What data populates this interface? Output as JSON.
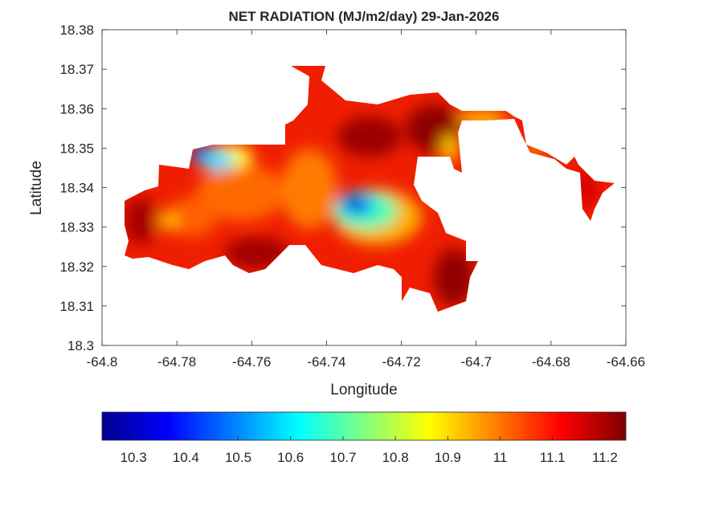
{
  "title": "NET RADIATION (MJ/m2/day) 29-Jan-2026",
  "xlabel": "Longitude",
  "ylabel": "Latitude",
  "xlim": [
    -64.8,
    -64.66
  ],
  "ylim": [
    18.3,
    18.38
  ],
  "xticks": [
    "-64.8",
    "-64.78",
    "-64.76",
    "-64.74",
    "-64.72",
    "-64.7",
    "-64.68",
    "-64.66"
  ],
  "yticks": [
    "18.3",
    "18.31",
    "18.32",
    "18.33",
    "18.34",
    "18.35",
    "18.36",
    "18.37",
    "18.38"
  ],
  "colorbar": {
    "colormap": "jet",
    "range": [
      10.24,
      11.24
    ],
    "orientation": "horizontal",
    "ticks": [
      "10.3",
      "10.4",
      "10.5",
      "10.6",
      "10.7",
      "10.8",
      "10.9",
      "11",
      "11.1",
      "11.2"
    ],
    "colors": [
      "#00008f",
      "#0000ff",
      "#00ffff",
      "#ffff00",
      "#ff0000",
      "#800000"
    ]
  },
  "chart_data": {
    "type": "heatmap",
    "title": "NET RADIATION (MJ/m2/day) 29-Jan-2026",
    "xlabel": "Longitude",
    "ylabel": "Latitude",
    "xlim": [
      -64.8,
      -64.66
    ],
    "ylim": [
      18.3,
      18.38
    ],
    "value_range": [
      10.24,
      11.24
    ],
    "notes_visible": "minimum near (-64.733, 18.337) and (-64.774, 18.348); most of area 11.0-11.2"
  }
}
